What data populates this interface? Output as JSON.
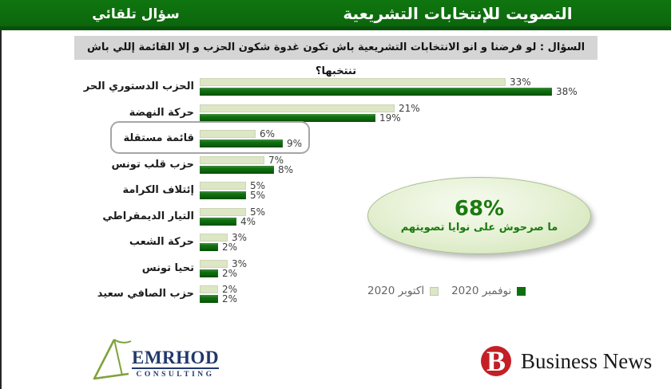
{
  "header": {
    "title": "التصويت للإنتخابات التشريعية",
    "left_label": "سؤال تلقائي"
  },
  "question": "السؤال : لو فرضنا و انو الانتخابات التشريعية باش تكون غدوة شكون الحزب و إلا القائمة إللي باش تنتخبها؟",
  "chart_data": {
    "type": "bar",
    "orientation": "horizontal",
    "value_suffix": "%",
    "xlim": [
      0,
      40
    ],
    "grid": false,
    "legend_position": "bottom-right",
    "categories": [
      "الحزب الدستوري الحر",
      "حركة النهضة",
      "قائمة مستقلة",
      "حزب قلب تونس",
      "إئتلاف الكرامة",
      "التيار الديمقراطي",
      "حركة الشعب",
      "تحيا تونس",
      "حزب الصافي سعيد"
    ],
    "series": [
      {
        "name": "اكتوبر 2020",
        "color": "#dde6c5",
        "values": [
          33,
          21,
          6,
          7,
          5,
          5,
          3,
          3,
          2
        ]
      },
      {
        "name": "نوفمبر 2020",
        "color": "#0e6f0e",
        "values": [
          38,
          19,
          9,
          8,
          5,
          4,
          2,
          2,
          2
        ]
      }
    ],
    "highlighted_category": "قائمة مستقلة"
  },
  "callout": {
    "value": "68%",
    "text": "ما صرحوش على نوايا تصويتهم"
  },
  "footer": {
    "emrhod": {
      "name": "EMRHOD",
      "subtitle": "CONSULTING"
    },
    "business_news": {
      "monogram": "B",
      "name": "Business News"
    }
  },
  "colors": {
    "header_green": "#0e6f0e",
    "header_strip": "#07510a",
    "bar_light": "#dde6c5",
    "bar_dark": "#0e6f0e",
    "question_bg": "#d5d5d5",
    "callout_text": "#1b7a10",
    "emrhod_blue": "#21386b",
    "emrhod_green": "#7fa33b",
    "business_news_red": "#c51f26"
  }
}
